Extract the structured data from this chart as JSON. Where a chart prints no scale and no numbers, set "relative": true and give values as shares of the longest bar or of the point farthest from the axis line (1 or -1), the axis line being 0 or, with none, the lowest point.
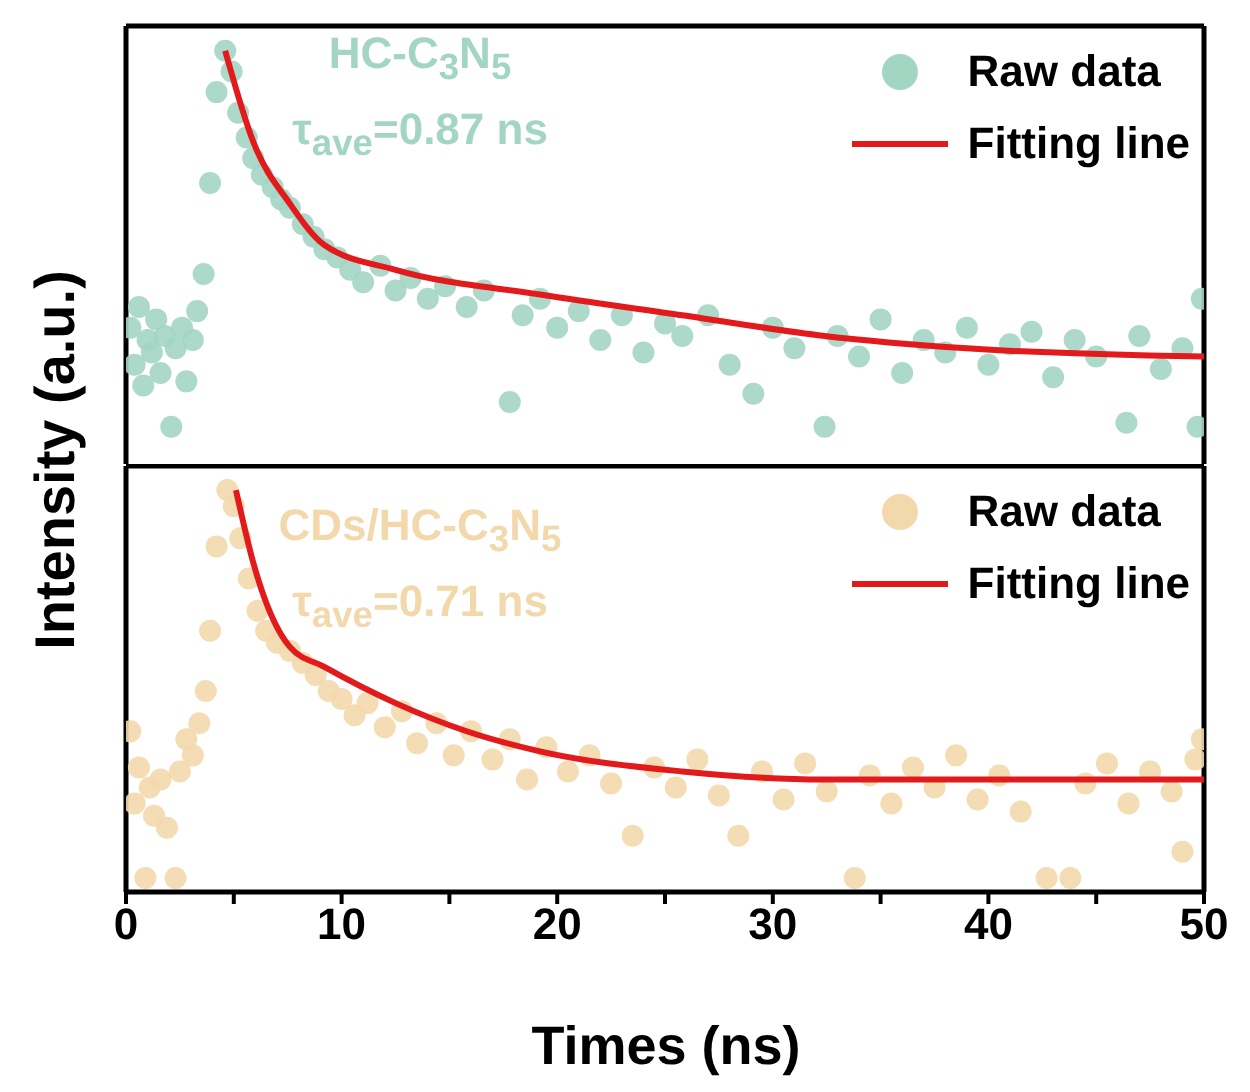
{
  "chart_data": [
    {
      "type": "scatter",
      "relative": true,
      "ylabel": "Intensity (a.u.)",
      "annotations": [
        "HC-C$_{3}$N$_{5}$",
        "τ$_{ave}$=0.87 ns"
      ],
      "xlim": [
        0,
        50
      ],
      "tick_labels": false,
      "legend": "top right",
      "series": [
        {
          "name": "Raw data",
          "marker": "circle",
          "color": "#a3d5c3",
          "x": [
            0.2,
            0.4,
            0.6,
            0.8,
            1.0,
            1.2,
            1.4,
            1.6,
            1.8,
            2.1,
            2.3,
            2.6,
            2.8,
            3.1,
            3.3,
            3.6,
            3.9,
            4.2,
            4.6,
            4.9,
            5.2,
            5.6,
            5.9,
            6.3,
            6.8,
            7.2,
            7.6,
            8.2,
            8.7,
            9.2,
            9.8,
            10.4,
            11.0,
            11.8,
            12.5,
            13.2,
            14.0,
            14.8,
            15.8,
            16.6,
            17.8,
            18.4,
            19.2,
            20.0,
            21.0,
            22.0,
            23.0,
            24.0,
            25.0,
            25.8,
            27.0,
            28.0,
            29.1,
            30.0,
            31.0,
            32.4,
            33.0,
            34.0,
            35.0,
            36.0,
            37.0,
            38.0,
            39.0,
            40.0,
            41.0,
            42.0,
            43.0,
            44.0,
            45.0,
            46.4,
            47.0,
            48.0,
            49.0,
            49.7,
            49.9
          ],
          "values": [
            0.33,
            0.24,
            0.38,
            0.19,
            0.3,
            0.27,
            0.35,
            0.22,
            0.31,
            0.09,
            0.28,
            0.33,
            0.2,
            0.3,
            0.37,
            0.46,
            0.68,
            0.9,
            1.0,
            0.95,
            0.85,
            0.79,
            0.74,
            0.7,
            0.67,
            0.64,
            0.62,
            0.58,
            0.55,
            0.52,
            0.5,
            0.47,
            0.44,
            0.48,
            0.42,
            0.45,
            0.4,
            0.43,
            0.38,
            0.42,
            0.15,
            0.36,
            0.4,
            0.33,
            0.37,
            0.3,
            0.36,
            0.27,
            0.34,
            0.31,
            0.36,
            0.24,
            0.17,
            0.33,
            0.28,
            0.09,
            0.31,
            0.26,
            0.35,
            0.22,
            0.3,
            0.27,
            0.33,
            0.24,
            0.29,
            0.32,
            0.21,
            0.3,
            0.26,
            0.1,
            0.31,
            0.23,
            0.28,
            0.09,
            0.4
          ]
        },
        {
          "name": "Fitting line",
          "type": "line",
          "color": "#e31a1c",
          "x": [
            4.6,
            5.9,
            7.6,
            9.2,
            12.5,
            19.2,
            25.8,
            32.4,
            39,
            50
          ],
          "values": [
            1.0,
            0.78,
            0.63,
            0.53,
            0.47,
            0.41,
            0.36,
            0.31,
            0.28,
            0.26
          ]
        }
      ]
    },
    {
      "type": "scatter",
      "relative": true,
      "xlabel": "Times (ns)",
      "annotations": [
        "CDs/HC-C$_{3}$N$_{5}$",
        "τ$_{ave}$=0.71 ns"
      ],
      "xlim": [
        0,
        50
      ],
      "xticks": [
        0,
        {
          "value": 5,
          "label": null
        },
        10,
        {
          "value": 15,
          "label": null
        },
        20,
        {
          "value": 25,
          "label": null
        },
        30,
        {
          "value": 35,
          "label": null
        },
        40,
        {
          "value": 45,
          "label": null
        },
        50
      ],
      "tick_labels": "x",
      "legend": "top right",
      "series": [
        {
          "name": "Raw data",
          "marker": "circle",
          "color": "#f3d8ac",
          "x": [
            0.2,
            0.4,
            0.6,
            0.9,
            1.1,
            1.3,
            1.6,
            1.9,
            2.3,
            2.5,
            2.8,
            3.1,
            3.4,
            3.7,
            3.9,
            4.2,
            4.7,
            5.0,
            5.3,
            5.7,
            6.1,
            6.5,
            7.0,
            7.6,
            8.2,
            8.8,
            9.4,
            10.0,
            10.6,
            11.2,
            12.0,
            12.8,
            13.5,
            14.4,
            15.2,
            16.0,
            17.0,
            17.8,
            18.6,
            19.5,
            20.5,
            21.5,
            22.5,
            23.5,
            24.5,
            25.5,
            26.5,
            27.5,
            28.4,
            29.5,
            30.5,
            31.5,
            32.5,
            33.8,
            34.5,
            35.5,
            36.5,
            37.5,
            38.5,
            39.5,
            40.5,
            41.5,
            42.7,
            43.8,
            44.5,
            45.5,
            46.5,
            47.5,
            48.5,
            49.0,
            49.6,
            49.9
          ],
          "values": [
            0.4,
            0.22,
            0.31,
            0.035,
            0.26,
            0.19,
            0.28,
            0.16,
            0.035,
            0.3,
            0.38,
            0.34,
            0.42,
            0.5,
            0.65,
            0.86,
            1.0,
            0.96,
            0.88,
            0.78,
            0.7,
            0.65,
            0.62,
            0.6,
            0.57,
            0.54,
            0.5,
            0.48,
            0.44,
            0.47,
            0.41,
            0.45,
            0.37,
            0.42,
            0.34,
            0.4,
            0.33,
            0.38,
            0.28,
            0.36,
            0.3,
            0.34,
            0.27,
            0.14,
            0.31,
            0.26,
            0.33,
            0.24,
            0.14,
            0.3,
            0.23,
            0.32,
            0.25,
            0.035,
            0.29,
            0.22,
            0.31,
            0.26,
            0.34,
            0.23,
            0.29,
            0.2,
            0.035,
            0.035,
            0.27,
            0.32,
            0.22,
            0.3,
            0.25,
            0.1,
            0.33,
            0.38
          ]
        },
        {
          "name": "Fitting line",
          "type": "line",
          "color": "#e31a1c",
          "x": [
            5.1,
            5.9,
            7.6,
            9.2,
            12.5,
            15.8,
            19.2,
            25.8,
            32.4,
            40,
            50
          ],
          "values": [
            1.0,
            0.82,
            0.61,
            0.56,
            0.47,
            0.4,
            0.35,
            0.3,
            0.28,
            0.28,
            0.28
          ]
        }
      ]
    }
  ]
}
